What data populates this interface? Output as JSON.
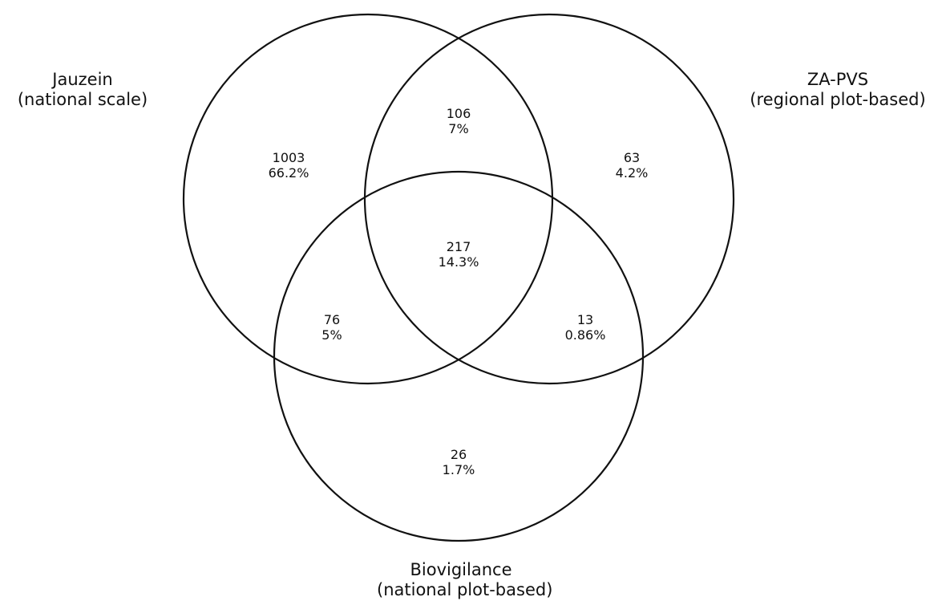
{
  "sets": {
    "a": {
      "name": "Jauzein",
      "desc": "(national scale)"
    },
    "b": {
      "name": "ZA-PVS",
      "desc": "(regional plot-based)"
    },
    "c": {
      "name": "Biovigilance",
      "desc": "(national plot-based)"
    }
  },
  "regions": {
    "a_only": {
      "count": "1003",
      "percent": "66.2%"
    },
    "b_only": {
      "count": "63",
      "percent": "4.2%"
    },
    "c_only": {
      "count": "26",
      "percent": "1.7%"
    },
    "ab": {
      "count": "106",
      "percent": "7%"
    },
    "ac": {
      "count": "76",
      "percent": "5%"
    },
    "bc": {
      "count": "13",
      "percent": "0.86%"
    },
    "abc": {
      "count": "217",
      "percent": "14.3%"
    }
  },
  "style": {
    "stroke": "#111111",
    "background": "#ffffff"
  }
}
